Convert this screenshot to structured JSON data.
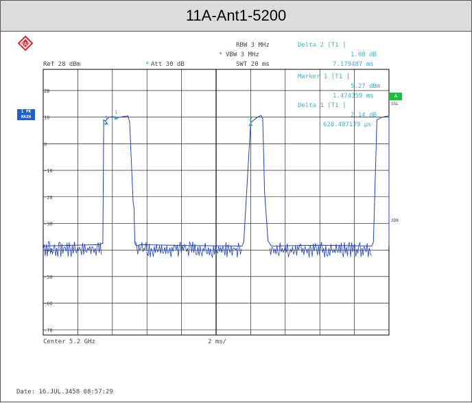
{
  "title": "11A-Ant1-5200",
  "header": {
    "rbw": "RBW 3 MHz",
    "vbw": "VBW 3 MHz",
    "vbw_marker": "*",
    "swt": "SWT 20 ms",
    "ref": "Ref  28 dBm",
    "att": "Att  30 dB",
    "att_marker": "*"
  },
  "markers": {
    "delta2_label": "Delta 2 [T1 ]",
    "delta2_value": "1.08 dB",
    "delta2_time": "7.179487 ms",
    "marker1_label": "Marker 1 [T1 ]",
    "marker1_value": "5.27 dBm",
    "marker1_time": "1.474359 ms",
    "delta1_label": "Delta 1 [T1 ]",
    "delta1_value": "2.14 dB",
    "delta1_time": "628.487179 µs"
  },
  "side": {
    "pk_line1": "1 PK",
    "pk_line2": "MAXH",
    "sgl": "SGL",
    "a_label": "A",
    "threshold_label": "3DB"
  },
  "footer": {
    "center": "Center 5.2 GHz",
    "span_div": "2 ms/",
    "date": "Date: 16.JUL.3458  08:57:29"
  },
  "colors": {
    "trace": "#1a3fd0",
    "marker": "#2aa8b8",
    "grid": "#000000"
  },
  "chart_data": {
    "type": "line",
    "xlabel": "",
    "ylabel": "",
    "ylim": [
      -72,
      28
    ],
    "xlim": [
      0,
      20
    ],
    "y_ticks": [
      20,
      10,
      0,
      -10,
      -20,
      -30,
      -40,
      -50,
      -60,
      -70
    ],
    "y_tick_labels": [
      "20",
      "10",
      "0",
      "-10",
      "-20",
      "-30",
      "-40",
      "-50",
      "-60",
      "-70"
    ],
    "series": [
      {
        "values_time_ms": [
          0.0,
          3.2,
          3.45,
          3.5,
          3.6,
          3.8,
          4.0,
          4.3,
          4.9,
          5.0,
          5.2,
          5.25,
          5.3,
          5.4,
          5.6,
          8.0,
          11.5,
          11.6,
          12.0,
          12.4,
          12.6,
          12.7,
          12.8,
          13.0,
          13.2,
          16.0,
          19.0,
          19.1,
          19.3,
          19.6,
          20.0,
          21.0,
          21.3,
          21.5,
          21.6,
          21.8,
          23.0
        ],
        "values_dbm": [
          -38.5,
          -38.0,
          -37.5,
          9.0,
          8.5,
          10.0,
          10.2,
          9.8,
          10.5,
          8.0,
          -22.0,
          -24.0,
          -37.5,
          -38.5,
          -38.0,
          -38.3,
          -38.5,
          -37.0,
          8.0,
          10.0,
          10.7,
          9.5,
          -18.0,
          -36.5,
          -38.5,
          -38.2,
          -38.5,
          -37.0,
          9.0,
          10.0,
          10.5,
          8.0,
          -23.0,
          -36.5,
          -38.5,
          -38.2,
          -38.5
        ]
      }
    ],
    "marker_points": [
      {
        "label": "1",
        "x_ms": 3.65,
        "y_dbm": 8.5
      },
      {
        "label": "1",
        "x_ms": 4.2,
        "y_dbm": 10.5
      },
      {
        "label": "2",
        "x_ms": 12.0,
        "y_dbm": 8.0
      }
    ],
    "threshold_dbm": -30
  }
}
